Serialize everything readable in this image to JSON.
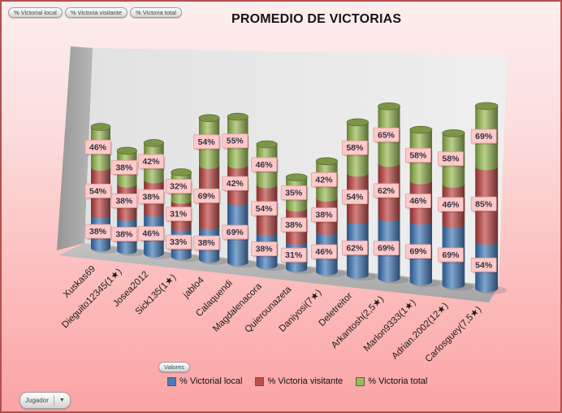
{
  "title": "PROMEDIO DE VICTORIAS",
  "field_buttons": [
    "% Victorial local",
    "% Victoria visitante",
    "% Victoria total"
  ],
  "values_button": "Valores",
  "axis_button": "Jugador",
  "colors": {
    "frame_border": "#b3504e",
    "background_top": "#fdeeee",
    "background_bottom": "#fba4a4",
    "label_fill": "#ffc9c9",
    "label_border": "#dfa0a0",
    "title_color": "#141414",
    "wall_gray": "#e9e9e9",
    "floor_gray": "#b2b2b2"
  },
  "chart_data": {
    "type": "bar",
    "subtype": "3d-cylinder-stacked",
    "title": "PROMEDIO DE VICTORIAS",
    "stacked": true,
    "grid": false,
    "legend_position": "bottom",
    "data_labels": "percent-at-segment-center",
    "categories": [
      "Xuskas69",
      "Dieguito12345(1★)",
      "Josea2012",
      "Sick135(1★)",
      "jablo4",
      "Calaquendi",
      "Magdalenacora",
      "Quierounazeta",
      "Daniyosi(7★)",
      "Deletreitor",
      "Arkantosh(2,5★)",
      "Marlon9333(1★)",
      "Adrian.2002(12★)",
      "Carlosguey(7,5★)"
    ],
    "series": [
      {
        "name": "% Victorial local",
        "color": "#4a7ebb",
        "values": [
          38,
          38,
          46,
          33,
          38,
          69,
          38,
          31,
          46,
          62,
          69,
          69,
          69,
          54
        ]
      },
      {
        "name": "% Victoria visitante",
        "color": "#bf4e4b",
        "values": [
          54,
          38,
          38,
          31,
          69,
          42,
          54,
          38,
          38,
          54,
          62,
          46,
          46,
          85
        ]
      },
      {
        "name": "% Victoria total",
        "color": "#9bbb59",
        "values": [
          46,
          38,
          42,
          32,
          54,
          55,
          46,
          35,
          42,
          58,
          65,
          58,
          58,
          69
        ]
      }
    ]
  }
}
